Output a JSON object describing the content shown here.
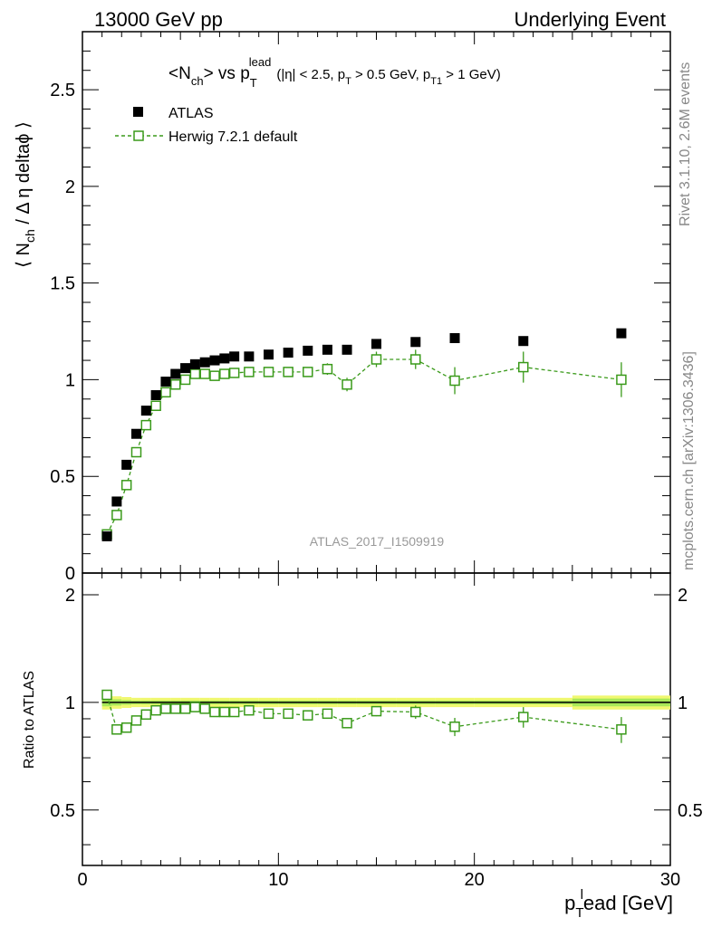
{
  "header": {
    "left": "13000 GeV pp",
    "right": "Underlying Event"
  },
  "title": {
    "main_prefix": "<N",
    "main_sub": "ch",
    "main_mid": "> vs p",
    "main_sub2": "T",
    "main_sup": "lead",
    "cond_a": "(|η| < 2.5, p",
    "cond_a_sub": "T",
    "cond_b": " > 0.5 GeV, p",
    "cond_b_sub": "T1",
    "cond_c": " > 1 GeV)"
  },
  "side_labels": {
    "rivet": "Rivet 3.1.10,  2.6M events",
    "mcplots": "mcplots.cern.ch [arXiv:1306.3436]"
  },
  "analysis_id": "ATLAS_2017_I1509919",
  "colors": {
    "data": "#000000",
    "mc": "#3a9a1a",
    "band_outer": "#f0f870",
    "band_inner": "#a8e858"
  },
  "chart_data": [
    {
      "type": "scatter",
      "name": "main",
      "ylabel_parts": [
        "⟨ N",
        "ch",
        " / Δ η deltaϕ ⟩"
      ],
      "xlim": [
        0,
        30
      ],
      "ylim": [
        0,
        2.8
      ],
      "yticks": [
        0,
        0.5,
        1,
        1.5,
        2,
        2.5
      ],
      "ytick_labels": [
        "0",
        "0.5",
        "1",
        "1.5",
        "2",
        "2.5"
      ],
      "legend_placement": "top-left",
      "series": [
        {
          "name": "ATLAS",
          "marker": "filled-square",
          "x": [
            1.25,
            1.75,
            2.25,
            2.75,
            3.25,
            3.75,
            4.25,
            4.75,
            5.25,
            5.75,
            6.25,
            6.75,
            7.25,
            7.75,
            8.5,
            9.5,
            10.5,
            11.5,
            12.5,
            13.5,
            15,
            17,
            19,
            22.5,
            27.5
          ],
          "y": [
            0.19,
            0.37,
            0.56,
            0.72,
            0.84,
            0.92,
            0.99,
            1.03,
            1.06,
            1.08,
            1.09,
            1.1,
            1.11,
            1.12,
            1.12,
            1.13,
            1.14,
            1.15,
            1.155,
            1.155,
            1.185,
            1.195,
            1.215,
            1.2,
            1.24
          ]
        },
        {
          "name": "Herwig 7.2.1 default",
          "marker": "open-square-dashed",
          "x": [
            1.25,
            1.75,
            2.25,
            2.75,
            3.25,
            3.75,
            4.25,
            4.75,
            5.25,
            5.75,
            6.25,
            6.75,
            7.25,
            7.75,
            8.5,
            9.5,
            10.5,
            11.5,
            12.5,
            13.5,
            15,
            17,
            19,
            22.5,
            27.5
          ],
          "y": [
            0.2,
            0.3,
            0.455,
            0.625,
            0.765,
            0.865,
            0.935,
            0.975,
            1.0,
            1.03,
            1.03,
            1.02,
            1.03,
            1.035,
            1.04,
            1.04,
            1.04,
            1.04,
            1.055,
            0.975,
            1.105,
            1.105,
            0.995,
            1.065,
            1.0
          ],
          "yerr": [
            0.01,
            0.01,
            0.01,
            0.01,
            0.01,
            0.01,
            0.01,
            0.01,
            0.01,
            0.01,
            0.01,
            0.01,
            0.01,
            0.01,
            0.015,
            0.015,
            0.015,
            0.02,
            0.03,
            0.035,
            0.04,
            0.05,
            0.07,
            0.08,
            0.09
          ]
        }
      ]
    },
    {
      "type": "scatter",
      "name": "ratio",
      "ylabel": "Ratio to ATLAS",
      "xlabel_parts": [
        "p",
        "T",
        "l",
        "ead [GeV]"
      ],
      "xlim": [
        0,
        30
      ],
      "xticks": [
        0,
        10,
        20,
        30
      ],
      "xtick_labels": [
        "0",
        "10",
        "20",
        "30"
      ],
      "ylim": [
        0.35,
        2.3
      ],
      "yticks": [
        0.5,
        1,
        2
      ],
      "ytick_labels": [
        "0.5",
        "1",
        "2"
      ],
      "scale": "log",
      "band": {
        "x_edges": [
          1,
          1.5,
          2,
          2.5,
          3,
          3.5,
          4,
          4.5,
          5,
          5.5,
          6,
          6.5,
          7,
          7.5,
          8,
          9,
          10,
          11,
          12,
          13,
          14,
          16,
          18,
          20,
          25,
          30
        ],
        "outer_half": [
          0.045,
          0.04,
          0.035,
          0.03,
          0.03,
          0.03,
          0.03,
          0.03,
          0.03,
          0.03,
          0.03,
          0.03,
          0.03,
          0.03,
          0.03,
          0.03,
          0.03,
          0.03,
          0.03,
          0.03,
          0.03,
          0.03,
          0.03,
          0.03,
          0.045
        ],
        "inner_half": [
          0.025,
          0.02,
          0.015,
          0.012,
          0.012,
          0.012,
          0.012,
          0.012,
          0.012,
          0.012,
          0.012,
          0.012,
          0.012,
          0.012,
          0.012,
          0.012,
          0.012,
          0.012,
          0.012,
          0.012,
          0.012,
          0.012,
          0.012,
          0.012,
          0.025
        ]
      },
      "series": [
        {
          "name": "Herwig 7.2.1 default",
          "x": [
            1.25,
            1.75,
            2.25,
            2.75,
            3.25,
            3.75,
            4.25,
            4.75,
            5.25,
            5.75,
            6.25,
            6.75,
            7.25,
            7.75,
            8.5,
            9.5,
            10.5,
            11.5,
            12.5,
            13.5,
            15,
            17,
            19,
            22.5,
            27.5
          ],
          "y": [
            1.05,
            0.84,
            0.85,
            0.89,
            0.925,
            0.95,
            0.96,
            0.96,
            0.96,
            0.97,
            0.96,
            0.94,
            0.94,
            0.94,
            0.95,
            0.93,
            0.93,
            0.92,
            0.93,
            0.875,
            0.945,
            0.94,
            0.855,
            0.91,
            0.84
          ],
          "yerr": [
            0.01,
            0.01,
            0.01,
            0.01,
            0.01,
            0.01,
            0.01,
            0.01,
            0.01,
            0.01,
            0.01,
            0.01,
            0.01,
            0.01,
            0.012,
            0.012,
            0.012,
            0.015,
            0.02,
            0.025,
            0.03,
            0.04,
            0.05,
            0.06,
            0.07
          ]
        }
      ]
    }
  ]
}
